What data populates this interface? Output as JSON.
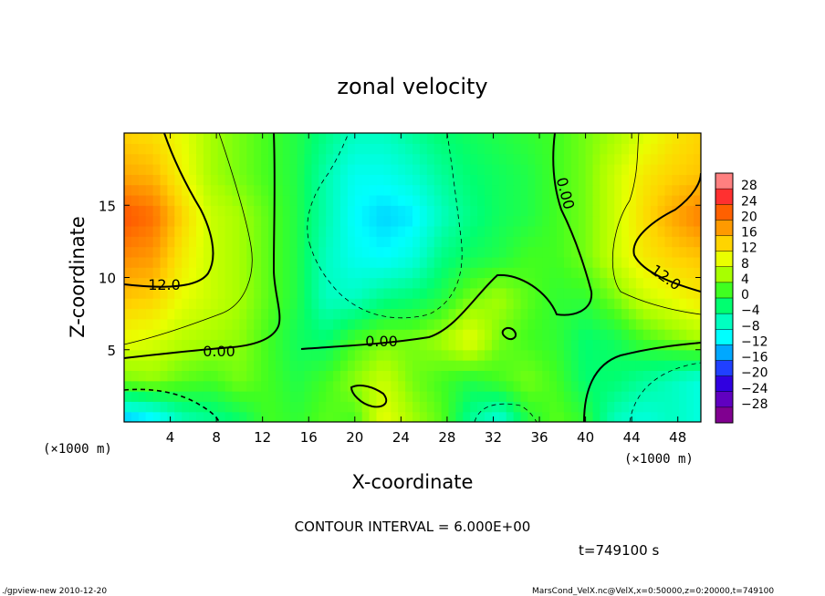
{
  "chart_data": {
    "type": "heatmap",
    "title": "zonal velocity",
    "xlabel": "X-coordinate",
    "ylabel": "Z-coordinate",
    "x_unit_label": "(×1000 m)",
    "y_unit_label": "(×1000 m)",
    "xlim": [
      0,
      50
    ],
    "ylim": [
      0,
      20
    ],
    "x_ticks": [
      4,
      8,
      12,
      16,
      20,
      24,
      28,
      32,
      36,
      40,
      44,
      48
    ],
    "y_ticks": [
      5,
      10,
      15
    ],
    "colorbar_ticks": [
      28,
      24,
      20,
      16,
      12,
      8,
      4,
      0,
      -4,
      -8,
      -12,
      -16,
      -20,
      -24,
      -28
    ],
    "colorbar_colors": [
      "#ff8080",
      "#ff3030",
      "#ff6000",
      "#ff9a00",
      "#ffd400",
      "#eaff00",
      "#a8ff00",
      "#40ff20",
      "#00ff70",
      "#00ffc0",
      "#00ffff",
      "#00a8ff",
      "#2040ff",
      "#3000e0",
      "#6000c0",
      "#800090"
    ],
    "contour_interval_text": "CONTOUR INTERVAL = 6.000E+00",
    "contour_labels": [
      "12.0",
      "12.0",
      "0.00",
      "0.00",
      "0.00"
    ],
    "grid": [
      [
        -14,
        -12,
        -6,
        -4,
        -2,
        2,
        1,
        3,
        2,
        10,
        6,
        3,
        -4,
        -8,
        0,
        3,
        1,
        -6,
        -8,
        -6,
        -8
      ],
      [
        4,
        5,
        3,
        2,
        4,
        2,
        0,
        2,
        5,
        8,
        4,
        2,
        0,
        2,
        4,
        2,
        -2,
        -2,
        -4,
        -6,
        -8
      ],
      [
        10,
        9,
        7,
        6,
        5,
        2,
        -1,
        -2,
        2,
        4,
        4,
        6,
        10,
        4,
        2,
        1,
        -2,
        -1,
        2,
        4,
        6
      ],
      [
        15,
        14,
        10,
        8,
        6,
        3,
        0,
        -6,
        -6,
        -3,
        -2,
        0,
        4,
        6,
        3,
        1,
        1,
        4,
        8,
        10,
        12
      ],
      [
        19,
        18,
        12,
        8,
        6,
        3,
        0,
        -6,
        -9,
        -10,
        -8,
        -3,
        -1,
        0,
        2,
        2,
        4,
        8,
        12,
        14,
        15
      ],
      [
        23,
        21,
        14,
        8,
        6,
        3,
        0,
        -5,
        -10,
        -12,
        -11,
        -6,
        -3,
        -1,
        0,
        2,
        4,
        8,
        13,
        17,
        20
      ],
      [
        17,
        16,
        11,
        6,
        4,
        2,
        0,
        -5,
        -9,
        -9,
        -7,
        -4,
        -2,
        -1,
        0,
        2,
        4,
        8,
        12,
        14,
        15
      ],
      [
        14,
        13,
        10,
        6,
        4,
        2,
        0,
        -3,
        -6,
        -6,
        -4,
        -2,
        -1,
        0,
        1,
        2,
        4,
        6,
        9,
        12,
        14
      ]
    ]
  },
  "footer": {
    "time_label": "t=749100 s",
    "left_note": "./gpview-new  2010-12-20",
    "right_note": "MarsCond_VelX.nc@VelX,x=0:50000,z=0:20000,t=749100"
  }
}
